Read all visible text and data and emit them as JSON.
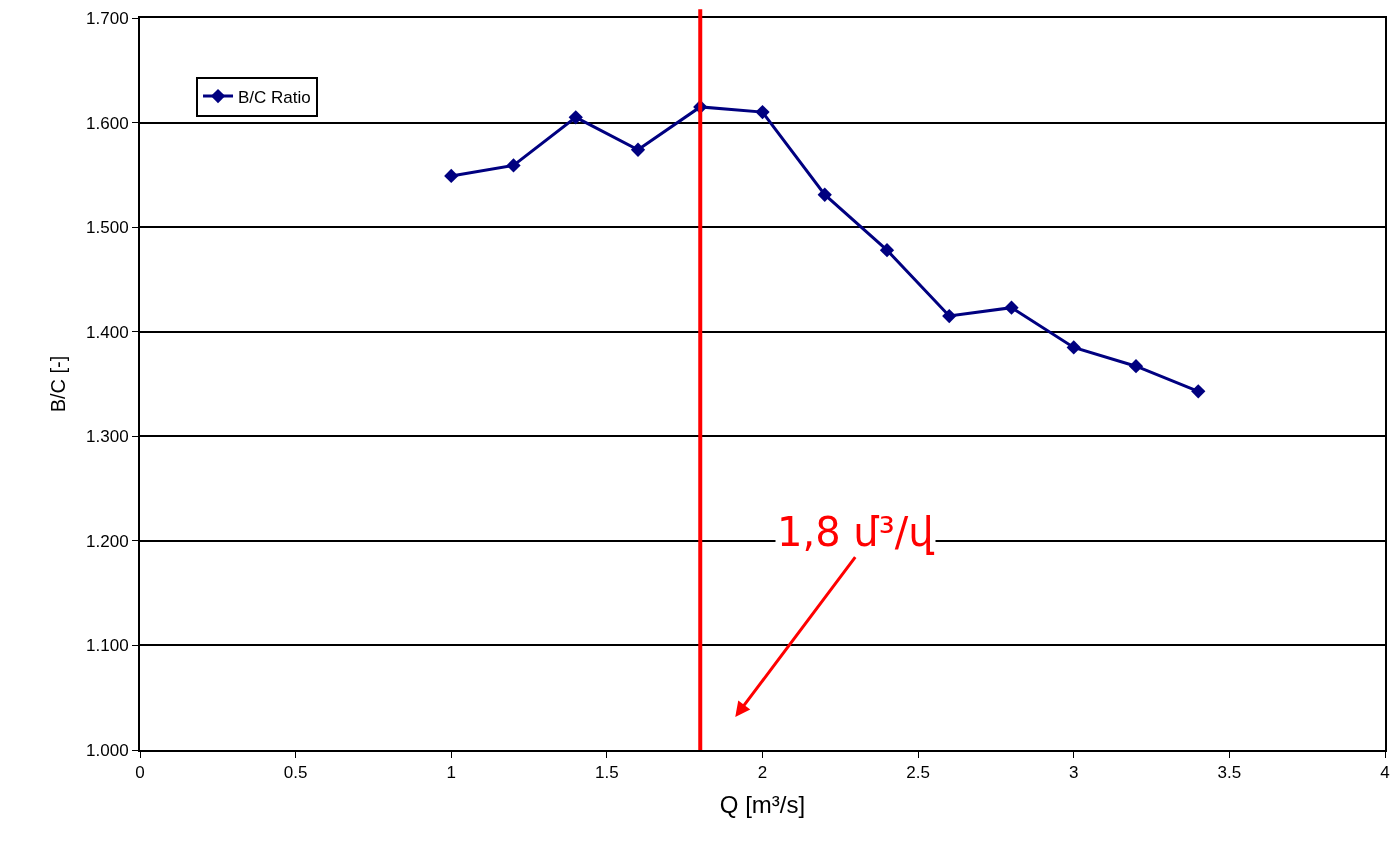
{
  "chart_data": {
    "type": "line",
    "xlabel": "Q [m³/s]",
    "ylabel": "B/C [-]",
    "x": [
      1,
      1.2,
      1.4,
      1.6,
      1.8,
      2.0,
      2.2,
      2.4,
      2.6,
      2.8,
      3.0,
      3.2,
      3.4
    ],
    "series": [
      {
        "name": "B/C Ratio",
        "color": "#000080",
        "values": [
          1.549,
          1.559,
          1.605,
          1.574,
          1.615,
          1.61,
          1.531,
          1.478,
          1.415,
          1.423,
          1.385,
          1.367,
          1.343
        ]
      }
    ],
    "xlim": [
      0,
      4
    ],
    "xticks": [
      0,
      0.5,
      1,
      1.5,
      2,
      2.5,
      3,
      3.5,
      4
    ],
    "ylim": [
      1.0,
      1.7
    ],
    "yticks": [
      {
        "value": 1.0,
        "label": "1.000"
      },
      {
        "value": 1.1,
        "label": "1.100"
      },
      {
        "value": 1.2,
        "label": "1.200"
      },
      {
        "value": 1.3,
        "label": "1.300"
      },
      {
        "value": 1.4,
        "label": "1.400"
      },
      {
        "value": 1.5,
        "label": "1.500"
      },
      {
        "value": 1.6,
        "label": "1.600"
      },
      {
        "value": 1.7,
        "label": "1.700"
      }
    ],
    "ref_lines": [
      {
        "axis": "x",
        "value": 1.8,
        "color": "#ff0000",
        "label": "1,8 մ³/վ"
      }
    ],
    "grid": "y",
    "legend": "top left",
    "marker": "diamond",
    "line_style": "solid"
  }
}
